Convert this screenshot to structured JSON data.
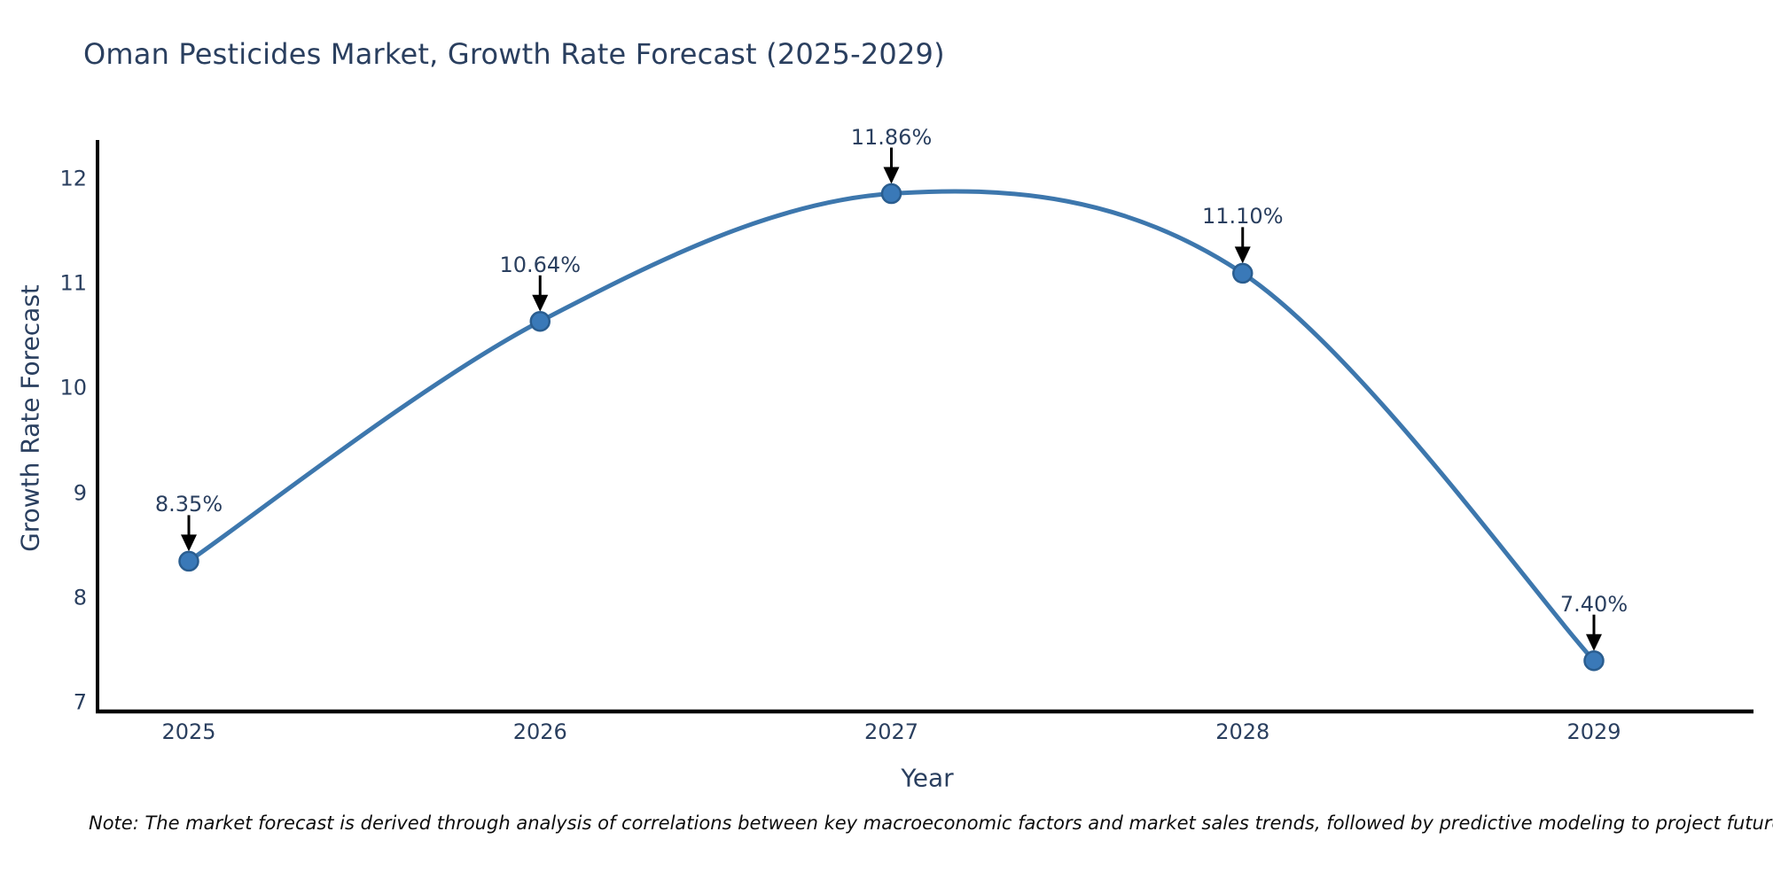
{
  "chart_data": {
    "type": "line",
    "title": "Oman Pesticides Market, Growth Rate Forecast (2025-2029)",
    "xlabel": "Year",
    "ylabel": "Growth Rate Forecast",
    "x": [
      2025,
      2026,
      2027,
      2028,
      2029
    ],
    "series": [
      {
        "name": "Growth Rate Forecast",
        "values": [
          8.35,
          10.64,
          11.86,
          11.1,
          7.4
        ]
      }
    ],
    "point_labels": [
      "8.35%",
      "10.64%",
      "11.86%",
      "11.10%",
      "7.40%"
    ],
    "y_ticks": [
      7,
      8,
      9,
      10,
      11,
      12
    ],
    "ylim": [
      6.9,
      12.4
    ],
    "line_shape": "spline",
    "grid": false,
    "legend": "none",
    "colors": {
      "line": "#3d77ad",
      "marker_fill": "#3a79b8",
      "marker_border": "#2a5d8f",
      "axis": "#000000",
      "text": "#2a3f5f",
      "annotation_arrow": "#000000"
    }
  },
  "note": "Note: The market forecast is derived through analysis of correlations between key macroeconomic factors and market sales trends, followed by predictive modeling to project future sales"
}
